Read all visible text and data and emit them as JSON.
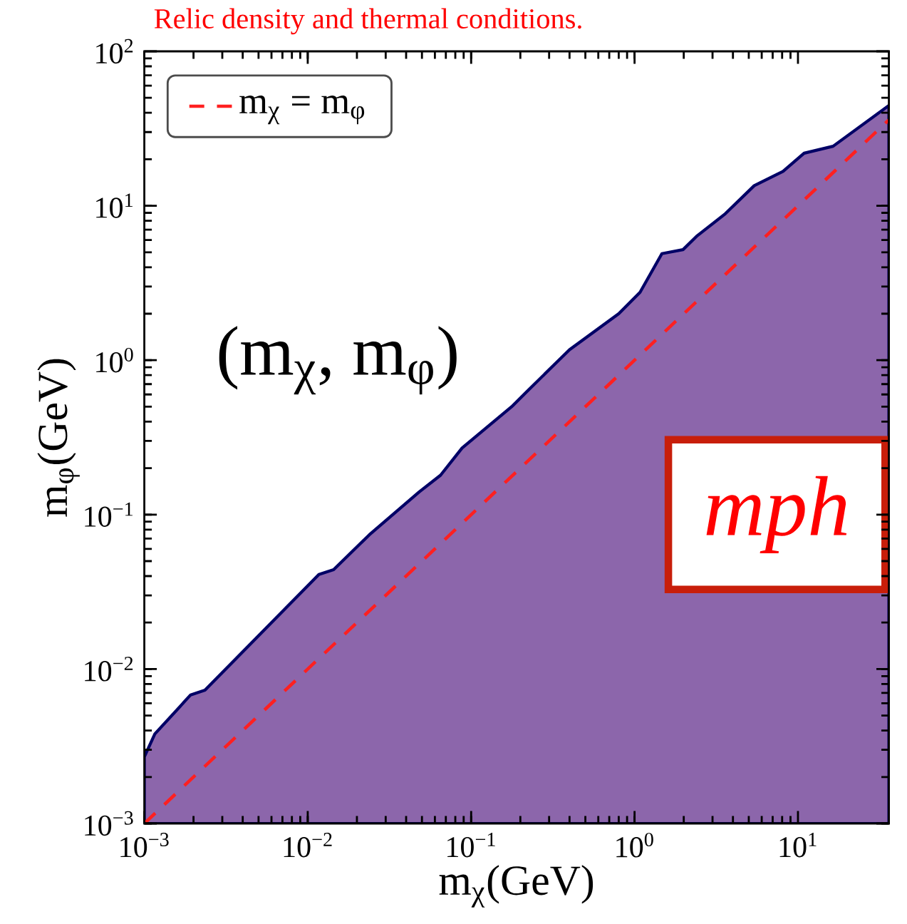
{
  "chart_data": {
    "type": "area",
    "title": "Relic density and thermal conditions.",
    "xlabel": "m$_{χ}$(GeV)",
    "ylabel": "m$_{φ}$(GeV)",
    "log": "xy",
    "xlim": [
      0.001,
      36
    ],
    "ylim": [
      0.001,
      100
    ],
    "xticks": [
      {
        "value": 0.001,
        "label": "10$^{−3}$"
      },
      {
        "value": 0.01,
        "label": "10$^{−2}$"
      },
      {
        "value": 0.1,
        "label": "10$^{−1}$"
      },
      {
        "value": 1,
        "label": "10$^{0}$"
      },
      {
        "value": 10,
        "label": "10$^{1}$"
      }
    ],
    "yticks": [
      {
        "value": 0.001,
        "label": "10$^{−3}$"
      },
      {
        "value": 0.01,
        "label": "10$^{−2}$"
      },
      {
        "value": 0.1,
        "label": "10$^{−1}$"
      },
      {
        "value": 1,
        "label": "10$^{0}$"
      },
      {
        "value": 10,
        "label": "10$^{1}$"
      },
      {
        "value": 100,
        "label": "10$^{2}$"
      }
    ],
    "legend": "top left",
    "annotations": [
      "(m$_{χ}$, m$_{φ}$)",
      "mph"
    ],
    "series": [
      {
        "color": "#8c66ab",
        "x": [
          0.001,
          0.00116,
          0.00192,
          0.00235,
          0.0117,
          0.0144,
          0.0238,
          0.048,
          0.065,
          0.088,
          0.177,
          0.217,
          0.4,
          0.8,
          1.08,
          1.47,
          1.98,
          2.42,
          3.6,
          5.4,
          8.1,
          10.9,
          16.4,
          36
        ],
        "values": [
          0.0027,
          0.0038,
          0.0068,
          0.0073,
          0.041,
          0.044,
          0.074,
          0.14,
          0.18,
          0.27,
          0.5,
          0.62,
          1.17,
          2.0,
          2.75,
          4.9,
          5.2,
          6.4,
          8.9,
          13.5,
          16.7,
          21.9,
          24.3,
          44.6
        ]
      },
      {
        "type": "line",
        "name": "m$_{χ}$ = m$_{φ}$",
        "color": "#ff2020",
        "line_style": "dashed",
        "x": [
          0.001,
          36
        ],
        "values": [
          0.001,
          36
        ]
      }
    ]
  }
}
